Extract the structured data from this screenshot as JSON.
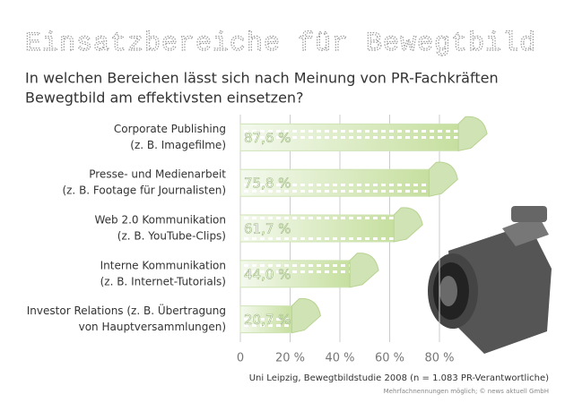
{
  "chart_data": {
    "type": "bar",
    "orientation": "horizontal",
    "title": "Einsatzbereiche für Bewegtbild",
    "subtitle": [
      "In welchen Bereichen lässt sich nach Meinung von PR-Fachkräften",
      "Bewegtbild am effektivsten einsetzen?"
    ],
    "categories": [
      [
        "Corporate Publishing",
        "(z. B. Imagefilme)"
      ],
      [
        "Presse- und Medienarbeit",
        "(z. B. Footage für Journalisten)"
      ],
      [
        "Web 2.0 Kommunikation",
        "(z. B. YouTube-Clips)"
      ],
      [
        "Interne Kommunikation",
        "(z. B. Internet-Tutorials)"
      ],
      [
        "Investor Relations (z. B. Übertragung",
        "von Hauptversammlungen)"
      ]
    ],
    "values": [
      87.6,
      75.8,
      61.7,
      44.0,
      20.7
    ],
    "value_labels": [
      "87,6 %",
      "75,8 %",
      "61,7 %",
      "44,0 %",
      "20,7 %"
    ],
    "color": "#cfe3b4",
    "xlim": [
      0,
      100
    ],
    "xticks": [
      0,
      {
        "value": 20,
        "label": "20 %"
      },
      {
        "value": 40,
        "label": "40 %"
      },
      {
        "value": 60,
        "label": "60 %"
      },
      {
        "value": 80,
        "label": "80 %"
      }
    ],
    "grid": true,
    "source": "Uni Leipzig, Bewegtbildstudie 2008 (n = 1.083 PR-Verantwortliche)",
    "footnote": "Mehrfachnennungen möglich; © news aktuell GmbH"
  }
}
